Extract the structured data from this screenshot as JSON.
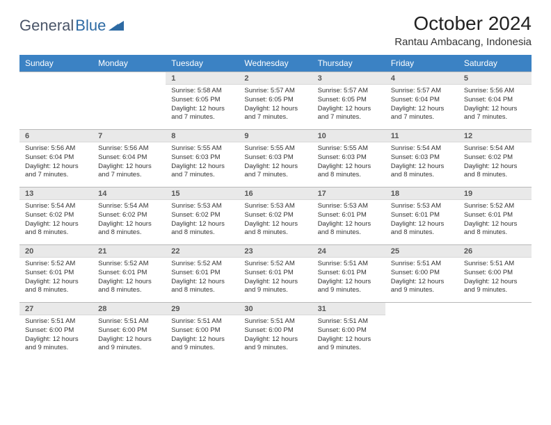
{
  "logo": {
    "part1": "General",
    "part2": "Blue"
  },
  "title": "October 2024",
  "location": "Rantau Ambacang, Indonesia",
  "colors": {
    "header_bg": "#3b82c4",
    "header_text": "#ffffff",
    "daynum_bg": "#e9e9e9",
    "logo_blue": "#2d6aa3",
    "logo_gray": "#4a5568"
  },
  "day_names": [
    "Sunday",
    "Monday",
    "Tuesday",
    "Wednesday",
    "Thursday",
    "Friday",
    "Saturday"
  ],
  "weeks": [
    {
      "nums": [
        "",
        "",
        "1",
        "2",
        "3",
        "4",
        "5"
      ],
      "cells": [
        null,
        null,
        {
          "sunrise": "Sunrise: 5:58 AM",
          "sunset": "Sunset: 6:05 PM",
          "daylight": "Daylight: 12 hours and 7 minutes."
        },
        {
          "sunrise": "Sunrise: 5:57 AM",
          "sunset": "Sunset: 6:05 PM",
          "daylight": "Daylight: 12 hours and 7 minutes."
        },
        {
          "sunrise": "Sunrise: 5:57 AM",
          "sunset": "Sunset: 6:05 PM",
          "daylight": "Daylight: 12 hours and 7 minutes."
        },
        {
          "sunrise": "Sunrise: 5:57 AM",
          "sunset": "Sunset: 6:04 PM",
          "daylight": "Daylight: 12 hours and 7 minutes."
        },
        {
          "sunrise": "Sunrise: 5:56 AM",
          "sunset": "Sunset: 6:04 PM",
          "daylight": "Daylight: 12 hours and 7 minutes."
        }
      ]
    },
    {
      "nums": [
        "6",
        "7",
        "8",
        "9",
        "10",
        "11",
        "12"
      ],
      "cells": [
        {
          "sunrise": "Sunrise: 5:56 AM",
          "sunset": "Sunset: 6:04 PM",
          "daylight": "Daylight: 12 hours and 7 minutes."
        },
        {
          "sunrise": "Sunrise: 5:56 AM",
          "sunset": "Sunset: 6:04 PM",
          "daylight": "Daylight: 12 hours and 7 minutes."
        },
        {
          "sunrise": "Sunrise: 5:55 AM",
          "sunset": "Sunset: 6:03 PM",
          "daylight": "Daylight: 12 hours and 7 minutes."
        },
        {
          "sunrise": "Sunrise: 5:55 AM",
          "sunset": "Sunset: 6:03 PM",
          "daylight": "Daylight: 12 hours and 7 minutes."
        },
        {
          "sunrise": "Sunrise: 5:55 AM",
          "sunset": "Sunset: 6:03 PM",
          "daylight": "Daylight: 12 hours and 8 minutes."
        },
        {
          "sunrise": "Sunrise: 5:54 AM",
          "sunset": "Sunset: 6:03 PM",
          "daylight": "Daylight: 12 hours and 8 minutes."
        },
        {
          "sunrise": "Sunrise: 5:54 AM",
          "sunset": "Sunset: 6:02 PM",
          "daylight": "Daylight: 12 hours and 8 minutes."
        }
      ]
    },
    {
      "nums": [
        "13",
        "14",
        "15",
        "16",
        "17",
        "18",
        "19"
      ],
      "cells": [
        {
          "sunrise": "Sunrise: 5:54 AM",
          "sunset": "Sunset: 6:02 PM",
          "daylight": "Daylight: 12 hours and 8 minutes."
        },
        {
          "sunrise": "Sunrise: 5:54 AM",
          "sunset": "Sunset: 6:02 PM",
          "daylight": "Daylight: 12 hours and 8 minutes."
        },
        {
          "sunrise": "Sunrise: 5:53 AM",
          "sunset": "Sunset: 6:02 PM",
          "daylight": "Daylight: 12 hours and 8 minutes."
        },
        {
          "sunrise": "Sunrise: 5:53 AM",
          "sunset": "Sunset: 6:02 PM",
          "daylight": "Daylight: 12 hours and 8 minutes."
        },
        {
          "sunrise": "Sunrise: 5:53 AM",
          "sunset": "Sunset: 6:01 PM",
          "daylight": "Daylight: 12 hours and 8 minutes."
        },
        {
          "sunrise": "Sunrise: 5:53 AM",
          "sunset": "Sunset: 6:01 PM",
          "daylight": "Daylight: 12 hours and 8 minutes."
        },
        {
          "sunrise": "Sunrise: 5:52 AM",
          "sunset": "Sunset: 6:01 PM",
          "daylight": "Daylight: 12 hours and 8 minutes."
        }
      ]
    },
    {
      "nums": [
        "20",
        "21",
        "22",
        "23",
        "24",
        "25",
        "26"
      ],
      "cells": [
        {
          "sunrise": "Sunrise: 5:52 AM",
          "sunset": "Sunset: 6:01 PM",
          "daylight": "Daylight: 12 hours and 8 minutes."
        },
        {
          "sunrise": "Sunrise: 5:52 AM",
          "sunset": "Sunset: 6:01 PM",
          "daylight": "Daylight: 12 hours and 8 minutes."
        },
        {
          "sunrise": "Sunrise: 5:52 AM",
          "sunset": "Sunset: 6:01 PM",
          "daylight": "Daylight: 12 hours and 8 minutes."
        },
        {
          "sunrise": "Sunrise: 5:52 AM",
          "sunset": "Sunset: 6:01 PM",
          "daylight": "Daylight: 12 hours and 9 minutes."
        },
        {
          "sunrise": "Sunrise: 5:51 AM",
          "sunset": "Sunset: 6:01 PM",
          "daylight": "Daylight: 12 hours and 9 minutes."
        },
        {
          "sunrise": "Sunrise: 5:51 AM",
          "sunset": "Sunset: 6:00 PM",
          "daylight": "Daylight: 12 hours and 9 minutes."
        },
        {
          "sunrise": "Sunrise: 5:51 AM",
          "sunset": "Sunset: 6:00 PM",
          "daylight": "Daylight: 12 hours and 9 minutes."
        }
      ]
    },
    {
      "nums": [
        "27",
        "28",
        "29",
        "30",
        "31",
        "",
        ""
      ],
      "cells": [
        {
          "sunrise": "Sunrise: 5:51 AM",
          "sunset": "Sunset: 6:00 PM",
          "daylight": "Daylight: 12 hours and 9 minutes."
        },
        {
          "sunrise": "Sunrise: 5:51 AM",
          "sunset": "Sunset: 6:00 PM",
          "daylight": "Daylight: 12 hours and 9 minutes."
        },
        {
          "sunrise": "Sunrise: 5:51 AM",
          "sunset": "Sunset: 6:00 PM",
          "daylight": "Daylight: 12 hours and 9 minutes."
        },
        {
          "sunrise": "Sunrise: 5:51 AM",
          "sunset": "Sunset: 6:00 PM",
          "daylight": "Daylight: 12 hours and 9 minutes."
        },
        {
          "sunrise": "Sunrise: 5:51 AM",
          "sunset": "Sunset: 6:00 PM",
          "daylight": "Daylight: 12 hours and 9 minutes."
        },
        null,
        null
      ]
    }
  ]
}
